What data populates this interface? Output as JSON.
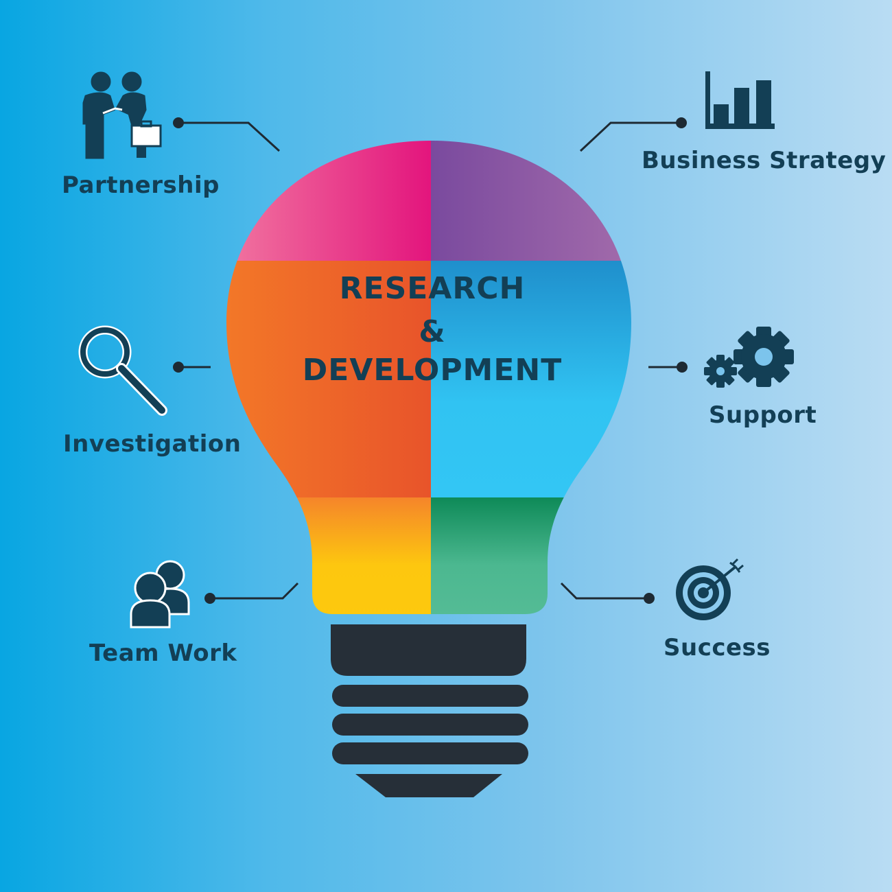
{
  "title": {
    "line1": "RESEARCH",
    "line2": "&",
    "line3": "DEVELOPMENT"
  },
  "items": {
    "partnership": {
      "label": "Partnership",
      "icon": "handshake-icon"
    },
    "investigation": {
      "label": "Investigation",
      "icon": "magnifier-icon"
    },
    "teamwork": {
      "label": "Team Work",
      "icon": "people-icon"
    },
    "strategy": {
      "label": "Business Strategy",
      "icon": "bar-chart-icon"
    },
    "support": {
      "label": "Support",
      "icon": "gears-icon"
    },
    "success": {
      "label": "Success",
      "icon": "target-icon"
    }
  },
  "colors": {
    "text": "#133f55",
    "pink": "#e8518a",
    "purple": "#9b5fa6",
    "orange": "#ee6a25",
    "blue": "#1aa0dc",
    "yellow": "#fcc40e",
    "green": "#3fae86",
    "socket": "#262f38"
  }
}
